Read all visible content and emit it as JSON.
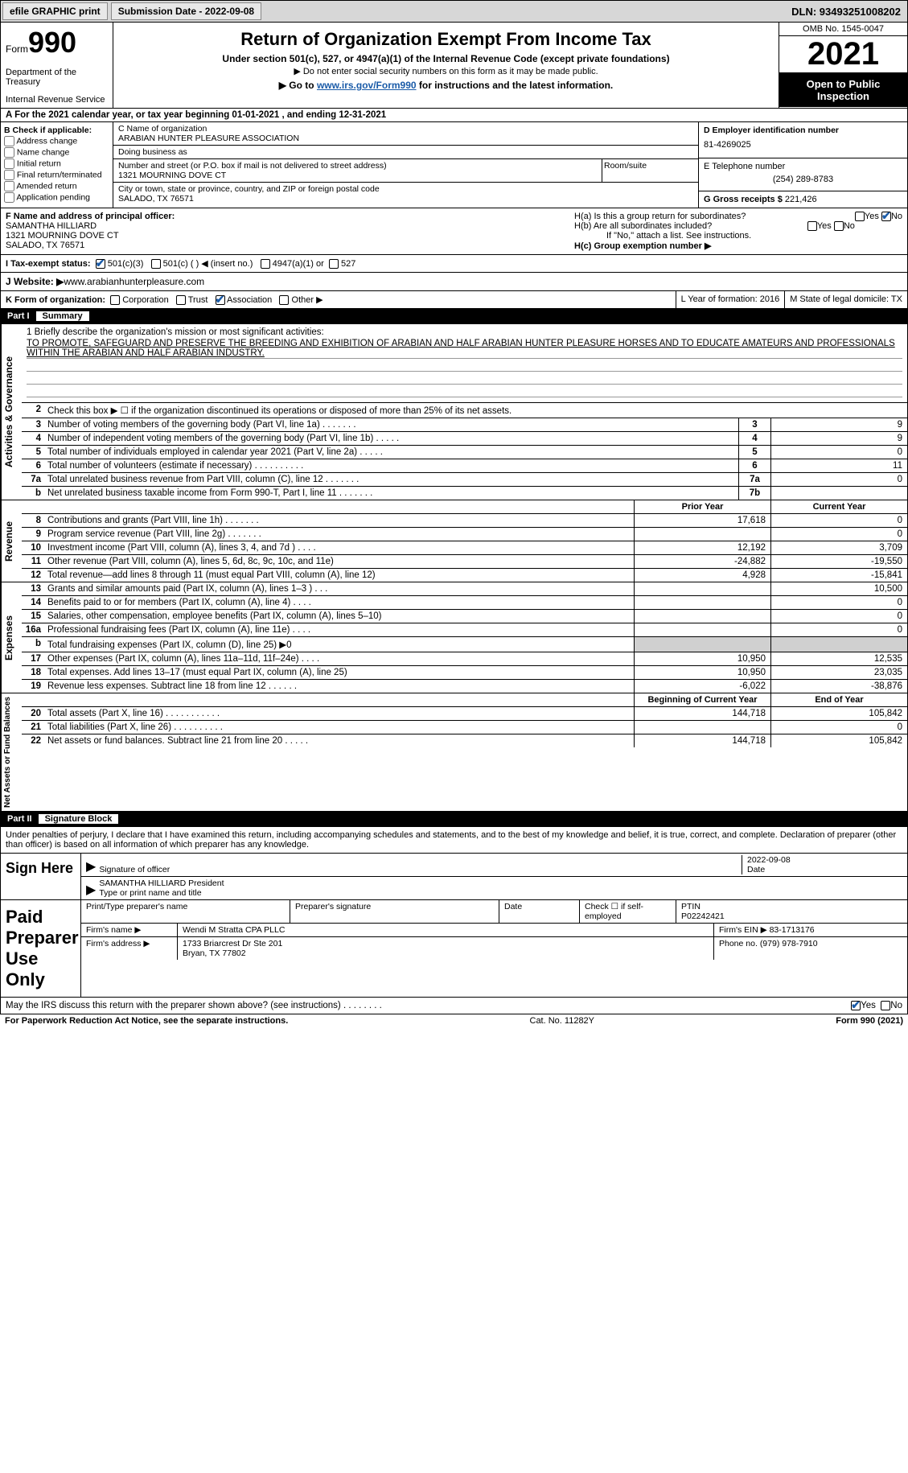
{
  "topbar": {
    "efile": "efile GRAPHIC print",
    "sub_label": "Submission Date - ",
    "sub_date": "2022-09-08",
    "dln": "DLN: 93493251008202"
  },
  "header": {
    "form_word": "Form",
    "form_num": "990",
    "dept": "Department of the Treasury",
    "irs": "Internal Revenue Service",
    "title": "Return of Organization Exempt From Income Tax",
    "sub1": "Under section 501(c), 527, or 4947(a)(1) of the Internal Revenue Code (except private foundations)",
    "sub2": "▶ Do not enter social security numbers on this form as it may be made public.",
    "sub3_a": "▶ Go to ",
    "sub3_link": "www.irs.gov/Form990",
    "sub3_b": " for instructions and the latest information.",
    "omb": "OMB No. 1545-0047",
    "year": "2021",
    "open": "Open to Public Inspection"
  },
  "row_a": "A  For the 2021 calendar year, or tax year beginning 01-01-2021    , and ending 12-31-2021",
  "box_b": {
    "hdr": "B Check if applicable:",
    "items": [
      "Address change",
      "Name change",
      "Initial return",
      "Final return/terminated",
      "Amended return",
      "Application pending"
    ]
  },
  "box_c": {
    "lbl_name": "C Name of organization",
    "org": "ARABIAN HUNTER PLEASURE ASSOCIATION",
    "dba_lbl": "Doing business as",
    "addr_lbl": "Number and street (or P.O. box if mail is not delivered to street address)",
    "addr": "1321 MOURNING DOVE CT",
    "room_lbl": "Room/suite",
    "city_lbl": "City or town, state or province, country, and ZIP or foreign postal code",
    "city": "SALADO, TX  76571"
  },
  "box_d": {
    "lbl": "D Employer identification number",
    "val": "81-4269025",
    "e_lbl": "E Telephone number",
    "e_val": "(254) 289-8783",
    "g_lbl": "G Gross receipts $ ",
    "g_val": "221,426"
  },
  "box_f": {
    "lbl": "F  Name and address of principal officer:",
    "name": "SAMANTHA HILLIARD",
    "addr1": "1321 MOURNING DOVE CT",
    "addr2": "SALADO, TX  76571"
  },
  "box_h": {
    "a": "H(a)  Is this a group return for subordinates?",
    "b": "H(b)  Are all subordinates included?",
    "b_note": "If \"No,\" attach a list. See instructions.",
    "c": "H(c)  Group exemption number ▶",
    "yes": "Yes",
    "no": "No"
  },
  "row_i": {
    "lbl": "I    Tax-exempt status:",
    "o1": "501(c)(3)",
    "o2": "501(c) (   ) ◀ (insert no.)",
    "o3": "4947(a)(1) or",
    "o4": "527"
  },
  "row_j": {
    "lbl": "J   Website: ▶",
    "val": "  www.arabianhunterpleasure.com"
  },
  "row_k": {
    "lbl": "K Form of organization:",
    "o1": "Corporation",
    "o2": "Trust",
    "o3": "Association",
    "o4": "Other ▶",
    "l": "L Year of formation: 2016",
    "m": "M State of legal domicile: TX"
  },
  "part1": {
    "num": "Part I",
    "title": "Summary"
  },
  "mission": {
    "lbl": "1   Briefly describe the organization's mission or most significant activities:",
    "txt": "TO PROMOTE, SAFEGUARD AND PRESERVE THE BREEDING AND EXHIBITION OF ARABIAN AND HALF ARABIAN HUNTER PLEASURE HORSES AND TO EDUCATE AMATEURS AND PROFESSIONALS WITHIN THE ARABIAN AND HALF ARABIAN INDUSTRY."
  },
  "gov_rows": [
    {
      "n": "2",
      "t": "Check this box ▶ ☐  if the organization discontinued its operations or disposed of more than 25% of its net assets.",
      "box": "",
      "v": ""
    },
    {
      "n": "3",
      "t": "Number of voting members of the governing body (Part VI, line 1a)    .    .    .    .    .    .    .",
      "box": "3",
      "v": "9"
    },
    {
      "n": "4",
      "t": "Number of independent voting members of the governing body (Part VI, line 1b)   .    .    .    .    .",
      "box": "4",
      "v": "9"
    },
    {
      "n": "5",
      "t": "Total number of individuals employed in calendar year 2021 (Part V, line 2a)   .    .    .    .    .",
      "box": "5",
      "v": "0"
    },
    {
      "n": "6",
      "t": "Total number of volunteers (estimate if necessary)    .    .    .    .    .    .    .    .    .    .",
      "box": "6",
      "v": "11"
    },
    {
      "n": "7a",
      "t": "Total unrelated business revenue from Part VIII, column (C), line 12   .    .    .    .    .    .    .",
      "box": "7a",
      "v": "0"
    },
    {
      "n": "b",
      "t": "Net unrelated business taxable income from Form 990-T, Part I, line 11  .    .    .    .    .    .    .",
      "box": "7b",
      "v": ""
    }
  ],
  "rev_hdr": {
    "py": "Prior Year",
    "cy": "Current Year"
  },
  "rev_rows": [
    {
      "n": "8",
      "t": "Contributions and grants (Part VIII, line 1h)   .    .    .    .    .    .    .",
      "py": "17,618",
      "cy": "0"
    },
    {
      "n": "9",
      "t": "Program service revenue (Part VIII, line 2g)   .    .    .    .    .    .    .",
      "py": "",
      "cy": "0"
    },
    {
      "n": "10",
      "t": "Investment income (Part VIII, column (A), lines 3, 4, and 7d )   .    .    .    .",
      "py": "12,192",
      "cy": "3,709"
    },
    {
      "n": "11",
      "t": "Other revenue (Part VIII, column (A), lines 5, 6d, 8c, 9c, 10c, and 11e)",
      "py": "-24,882",
      "cy": "-19,550"
    },
    {
      "n": "12",
      "t": "Total revenue—add lines 8 through 11 (must equal Part VIII, column (A), line 12)",
      "py": "4,928",
      "cy": "-15,841"
    }
  ],
  "exp_rows": [
    {
      "n": "13",
      "t": "Grants and similar amounts paid (Part IX, column (A), lines 1–3 )  .    .    .",
      "py": "",
      "cy": "10,500"
    },
    {
      "n": "14",
      "t": "Benefits paid to or for members (Part IX, column (A), line 4)   .    .    .    .",
      "py": "",
      "cy": "0"
    },
    {
      "n": "15",
      "t": "Salaries, other compensation, employee benefits (Part IX, column (A), lines 5–10)",
      "py": "",
      "cy": "0"
    },
    {
      "n": "16a",
      "t": "Professional fundraising fees (Part IX, column (A), line 11e)   .    .    .    .",
      "py": "",
      "cy": "0"
    },
    {
      "n": "b",
      "t": "Total fundraising expenses (Part IX, column (D), line 25) ▶0",
      "py": "SHADE",
      "cy": "SHADE"
    },
    {
      "n": "17",
      "t": "Other expenses (Part IX, column (A), lines 11a–11d, 11f–24e)  .    .    .    .",
      "py": "10,950",
      "cy": "12,535"
    },
    {
      "n": "18",
      "t": "Total expenses. Add lines 13–17 (must equal Part IX, column (A), line 25)",
      "py": "10,950",
      "cy": "23,035"
    },
    {
      "n": "19",
      "t": "Revenue less expenses. Subtract line 18 from line 12 .    .    .    .    .    .",
      "py": "-6,022",
      "cy": "-38,876"
    }
  ],
  "net_hdr": {
    "py": "Beginning of Current Year",
    "cy": "End of Year"
  },
  "net_rows": [
    {
      "n": "20",
      "t": "Total assets (Part X, line 16)  .    .    .    .    .    .    .    .    .    .    .",
      "py": "144,718",
      "cy": "105,842"
    },
    {
      "n": "21",
      "t": "Total liabilities (Part X, line 26)  .    .    .    .    .    .    .    .    .    .",
      "py": "",
      "cy": "0"
    },
    {
      "n": "22",
      "t": "Net assets or fund balances. Subtract line 21 from line 20  .    .    .    .    .",
      "py": "144,718",
      "cy": "105,842"
    }
  ],
  "vtabs": {
    "gov": "Activities & Governance",
    "rev": "Revenue",
    "exp": "Expenses",
    "net": "Net Assets or Fund Balances"
  },
  "part2": {
    "num": "Part II",
    "title": "Signature Block"
  },
  "sig_decl": "Under penalties of perjury, I declare that I have examined this return, including accompanying schedules and statements, and to the best of my knowledge and belief, it is true, correct, and complete. Declaration of preparer (other than officer) is based on all information of which preparer has any knowledge.",
  "sign": {
    "left": "Sign Here",
    "sig_lbl": "Signature of officer",
    "date_lbl": "Date",
    "date": "2022-09-08",
    "name": "SAMANTHA HILLIARD  President",
    "name_lbl": "Type or print name and title"
  },
  "paid": {
    "left": "Paid Preparer Use Only",
    "h1": "Print/Type preparer's name",
    "h2": "Preparer's signature",
    "h3": "Date",
    "h4": "Check ☐ if self-employed",
    "h5": "PTIN",
    "ptin": "P02242421",
    "firm_lbl": "Firm's name    ▶",
    "firm": "Wendi M Stratta CPA PLLC",
    "ein_lbl": "Firm's EIN ▶",
    "ein": "83-1713176",
    "addr_lbl": "Firm's address ▶",
    "addr1": "1733 Briarcrest Dr Ste 201",
    "addr2": "Bryan, TX   77802",
    "ph_lbl": "Phone no.",
    "ph": "(979) 978-7910"
  },
  "discuss": "May the IRS discuss this return with the preparer shown above? (see instructions)   .    .    .    .    .    .    .    .",
  "footer": {
    "l": "For Paperwork Reduction Act Notice, see the separate instructions.",
    "c": "Cat. No. 11282Y",
    "r": "Form 990 (2021)"
  }
}
